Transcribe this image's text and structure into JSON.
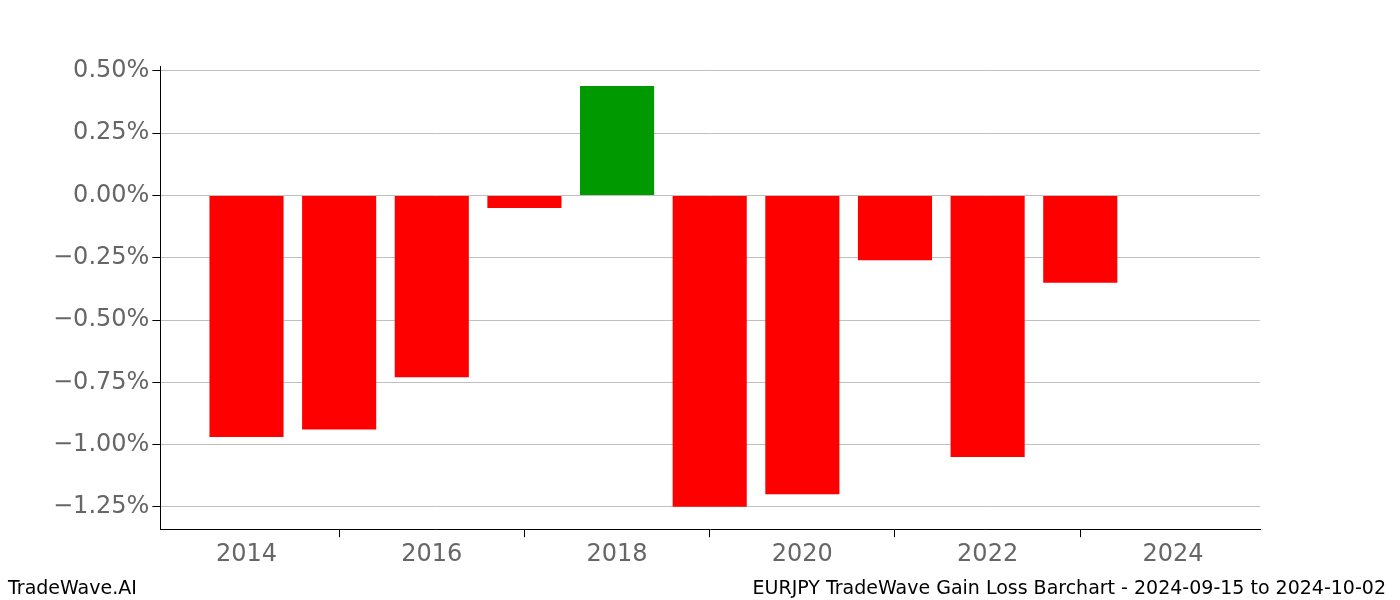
{
  "chart_data": {
    "type": "bar",
    "title": "EURJPY TradeWave Gain Loss Barchart - 2024-09-15 to 2024-10-02",
    "source": "TradeWave.AI",
    "x": [
      2014,
      2015,
      2016,
      2017,
      2018,
      2019,
      2020,
      2021,
      2022,
      2023
    ],
    "values": [
      -0.97,
      -0.94,
      -0.73,
      -0.05,
      0.44,
      -1.25,
      -1.2,
      -0.26,
      -1.05,
      -0.35
    ],
    "colors": [
      "#ff0000",
      "#ff0000",
      "#ff0000",
      "#ff0000",
      "#009900",
      "#ff0000",
      "#ff0000",
      "#ff0000",
      "#ff0000",
      "#ff0000"
    ],
    "xlim": [
      2013.07,
      2024.94
    ],
    "xticks": [
      2014,
      2016,
      2018,
      2020,
      2022,
      2024
    ],
    "ylim": [
      -1.34,
      0.52
    ],
    "yticks": [
      {
        "value": -1.25,
        "label": "−1.25%"
      },
      {
        "value": -1.0,
        "label": "−1.00%"
      },
      {
        "value": -0.75,
        "label": "−0.75%"
      },
      {
        "value": -0.5,
        "label": "−0.50%"
      },
      {
        "value": -0.25,
        "label": "−0.25%"
      },
      {
        "value": 0,
        "label": "0.00%"
      },
      {
        "value": 0.25,
        "label": "0.25%"
      },
      {
        "value": 0.5,
        "label": "0.50%"
      }
    ],
    "grid": true
  }
}
